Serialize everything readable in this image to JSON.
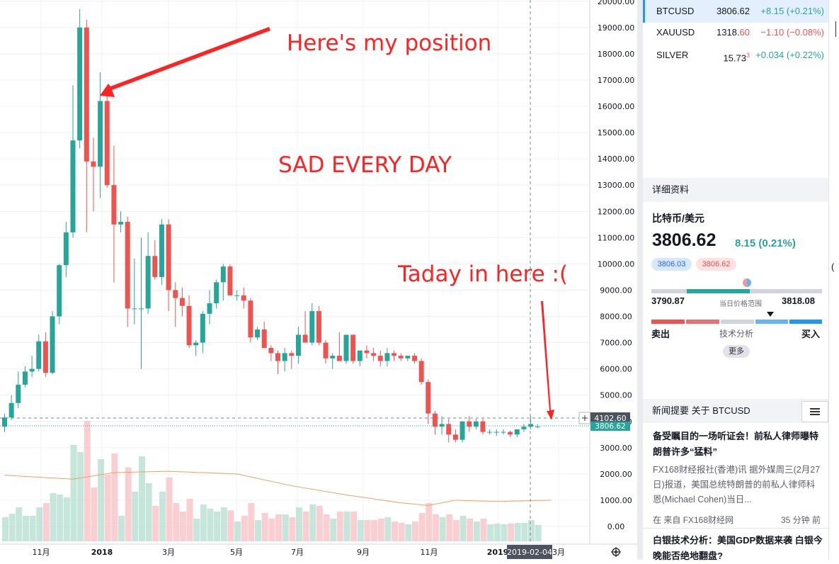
{
  "annotations": {
    "position_note": "Here's my position",
    "sad_note": "SAD EVERY DAY",
    "today_note": "Taday in here :("
  },
  "price_axis": {
    "labels": [
      "20000.00",
      "19000.00",
      "18000.00",
      "17000.00",
      "16000.00",
      "15000.00",
      "14000.00",
      "13000.00",
      "12000.00",
      "11000.00",
      "10000.00",
      "9000.00",
      "8000.00",
      "7000.00",
      "6000.00",
      "5000.00",
      "4000.00",
      "3000.00",
      "2000.00",
      "1000.00",
      "0.00"
    ],
    "crosshair_price": "4102.60",
    "last_price_label": "3806.62"
  },
  "time_axis": {
    "labels": [
      "11月",
      "2018",
      "3月",
      "5月",
      "7月",
      "9月",
      "11月",
      "2019",
      "3月"
    ],
    "crosshair_date": "2019-02-04"
  },
  "watchlist": [
    {
      "symbol": "BTCUSD",
      "last_main": "3806.62",
      "last_tail": "",
      "last_sup": "",
      "change": "+8.15 (+0.21%)",
      "dir": "up"
    },
    {
      "symbol": "XAUUSD",
      "last_main": "1318.",
      "last_tail": "60",
      "last_sup": "",
      "change": "−1.10 (−0.08%)",
      "dir": "down"
    },
    {
      "symbol": "SILVER",
      "last_main": "15.73",
      "last_tail": "",
      "last_sup": "3",
      "change": "+0.034 (+0.22%)",
      "dir": "up"
    }
  ],
  "details": {
    "header": "详细资料",
    "pair_name": "比特币/美元",
    "price": "3806.62",
    "change": "8.15 (0.21%)",
    "bid": "3806.03",
    "ask": "3806.62",
    "range_low": "3790.87",
    "range_label": "当日价格范围",
    "range_high": "3818.08",
    "sell_label": "卖出",
    "tech_label": "技术分析",
    "buy_label": "买入",
    "more_label": "更多"
  },
  "news": {
    "header": "新闻提要 关于 BTCUSD",
    "item1": {
      "title": "备受瞩目的一场听证会！前私人律师曝特朗普许多“猛料”",
      "body": "FX168财经报社(香港)讯 据外媒周三(2月27日)报道，美国总统特朗普的前私人律师科恩(Michael Cohen)当日...",
      "source": "在 来自 FX168财经网",
      "time": "35 分钟 前"
    },
    "item2": {
      "title": "白银技术分析：美国GDP数据来袭 白银今晚能否绝地翻盘?"
    }
  },
  "colors": {
    "up": "#26a69a",
    "down": "#ef5350",
    "accent": "#2196f3",
    "annotation": "#ff2222"
  },
  "chart_data": {
    "type": "candlestick",
    "symbol": "BTCUSD",
    "interval": "weekly",
    "ylim": [
      0,
      20000
    ],
    "candles": [
      [
        3800,
        4300,
        3600,
        4150
      ],
      [
        4150,
        5000,
        4050,
        4700
      ],
      [
        4700,
        5900,
        4500,
        5400
      ],
      [
        5400,
        6100,
        5300,
        5900
      ],
      [
        5900,
        6500,
        5700,
        6000
      ],
      [
        6000,
        7300,
        5900,
        7050
      ],
      [
        7050,
        7400,
        5700,
        5850
      ],
      [
        5850,
        8200,
        5800,
        8000
      ],
      [
        8000,
        10000,
        7700,
        9950
      ],
      [
        9950,
        11600,
        9500,
        11200
      ],
      [
        11200,
        16800,
        11000,
        14700
      ],
      [
        14700,
        19700,
        14400,
        19000
      ],
      [
        19000,
        19300,
        11200,
        13900
      ],
      [
        13900,
        14800,
        12000,
        13700
      ],
      [
        13700,
        17300,
        12500,
        16200
      ],
      [
        16200,
        16600,
        12900,
        13000
      ],
      [
        13000,
        14500,
        9300,
        11500
      ],
      [
        11500,
        12000,
        11200,
        11600
      ],
      [
        11600,
        11800,
        7600,
        8300
      ],
      [
        8300,
        10200,
        7700,
        8300
      ],
      [
        8300,
        11000,
        6000,
        8300
      ],
      [
        8300,
        11200,
        8100,
        10300
      ],
      [
        10300,
        10900,
        9400,
        9500
      ],
      [
        9500,
        11700,
        9200,
        11500
      ],
      [
        11500,
        11700,
        8200,
        9000
      ],
      [
        9000,
        9300,
        7600,
        8700
      ],
      [
        8700,
        9100,
        8000,
        8400
      ],
      [
        8400,
        8800,
        6800,
        6900
      ],
      [
        6900,
        7100,
        6500,
        7000
      ],
      [
        7000,
        8200,
        6600,
        8100
      ],
      [
        8100,
        9000,
        7700,
        8500
      ],
      [
        8500,
        9400,
        8300,
        9300
      ],
      [
        9300,
        10000,
        8600,
        9900
      ],
      [
        9900,
        9990,
        8800,
        8800
      ],
      [
        8800,
        9000,
        8600,
        8800
      ],
      [
        8800,
        9100,
        8300,
        8600
      ],
      [
        8600,
        8700,
        7000,
        7200
      ],
      [
        7200,
        7600,
        7100,
        7500
      ],
      [
        7500,
        7800,
        6800,
        6800
      ],
      [
        6800,
        6900,
        6300,
        6600
      ],
      [
        6600,
        6700,
        5800,
        6300
      ],
      [
        6300,
        6800,
        5900,
        6600
      ],
      [
        6600,
        6700,
        6000,
        6500
      ],
      [
        6500,
        7600,
        6200,
        7300
      ],
      [
        7300,
        8200,
        7100,
        7000
      ],
      [
        7000,
        8500,
        6900,
        8200
      ],
      [
        8200,
        8400,
        6900,
        7000
      ],
      [
        7000,
        7100,
        6200,
        6400
      ],
      [
        6400,
        6600,
        6000,
        6500
      ],
      [
        6500,
        7400,
        6300,
        6300
      ],
      [
        6300,
        7300,
        6200,
        7300
      ],
      [
        7300,
        7300,
        6200,
        6300
      ],
      [
        6300,
        6600,
        6100,
        6700
      ],
      [
        6700,
        6900,
        6400,
        6600
      ],
      [
        6600,
        6800,
        6300,
        6500
      ],
      [
        6500,
        6700,
        6100,
        6300
      ],
      [
        6300,
        6800,
        6100,
        6600
      ],
      [
        6600,
        6700,
        6300,
        6500
      ],
      [
        6500,
        6600,
        6300,
        6400
      ],
      [
        6400,
        6500,
        6300,
        6500
      ],
      [
        6500,
        6600,
        6200,
        6300
      ],
      [
        6300,
        6400,
        5400,
        5500
      ],
      [
        5500,
        5600,
        3900,
        4300
      ],
      [
        4300,
        4400,
        3500,
        3800
      ],
      [
        3800,
        4200,
        3500,
        3900
      ],
      [
        3900,
        4100,
        3200,
        3500
      ],
      [
        3500,
        3700,
        3200,
        3300
      ],
      [
        3300,
        4000,
        3200,
        4000
      ],
      [
        4000,
        4200,
        3600,
        3800
      ],
      [
        3800,
        4100,
        3700,
        4000
      ],
      [
        4000,
        4100,
        3500,
        3600
      ],
      [
        3600,
        3700,
        3500,
        3600
      ],
      [
        3600,
        3700,
        3450,
        3600
      ],
      [
        3600,
        3700,
        3500,
        3600
      ],
      [
        3600,
        3650,
        3400,
        3500
      ],
      [
        3500,
        3700,
        3400,
        3700
      ],
      [
        3700,
        3900,
        3600,
        3800
      ],
      [
        3800,
        4200,
        3700,
        3900
      ],
      [
        3806,
        3900,
        3750,
        3806
      ]
    ],
    "volume_ma": [
      [
        0,
        1950
      ],
      [
        10,
        1800
      ],
      [
        16,
        2050
      ],
      [
        24,
        2100
      ],
      [
        34,
        2000
      ],
      [
        42,
        1550
      ],
      [
        50,
        1200
      ],
      [
        58,
        900
      ],
      [
        62,
        800
      ],
      [
        66,
        1000
      ],
      [
        72,
        950
      ],
      [
        80,
        1000
      ]
    ]
  }
}
